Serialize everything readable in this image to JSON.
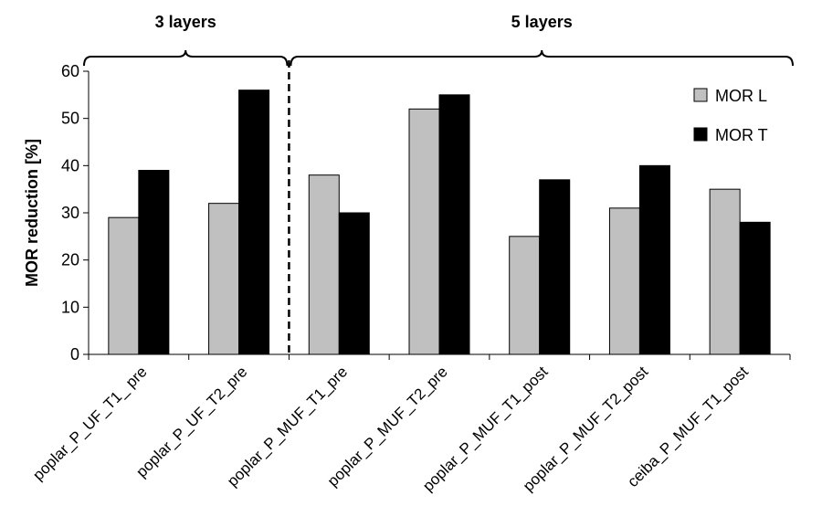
{
  "chart_data": {
    "type": "bar",
    "title": "",
    "xlabel": "",
    "ylabel": "MOR reduction [%]",
    "ylim": [
      0,
      60
    ],
    "yticks": [
      "0",
      "10",
      "20",
      "30",
      "40",
      "50",
      "60"
    ],
    "grid": false,
    "legend_position": "top-right",
    "categories": [
      "poplar_P_UF_T1_ pre",
      "poplar_P_UF_T2_pre",
      "poplar_P_MUF_T1_pre",
      "poplar_P_MUF_T2_pre",
      "poplar_P_MUF_T1_post",
      "poplar_P_MUF_T2_post",
      "ceiba_P_MUF_T1_post"
    ],
    "series": [
      {
        "name": "MOR L",
        "color": "#c0c0c0",
        "values": [
          29,
          32,
          38,
          52,
          25,
          31,
          35
        ]
      },
      {
        "name": "MOR T",
        "color": "#000000",
        "values": [
          39,
          56,
          30,
          55,
          37,
          40,
          28
        ]
      }
    ],
    "groups": [
      {
        "label": "3 layers",
        "from": 0,
        "to": 1
      },
      {
        "label": "5 layers",
        "from": 2,
        "to": 6
      }
    ]
  }
}
